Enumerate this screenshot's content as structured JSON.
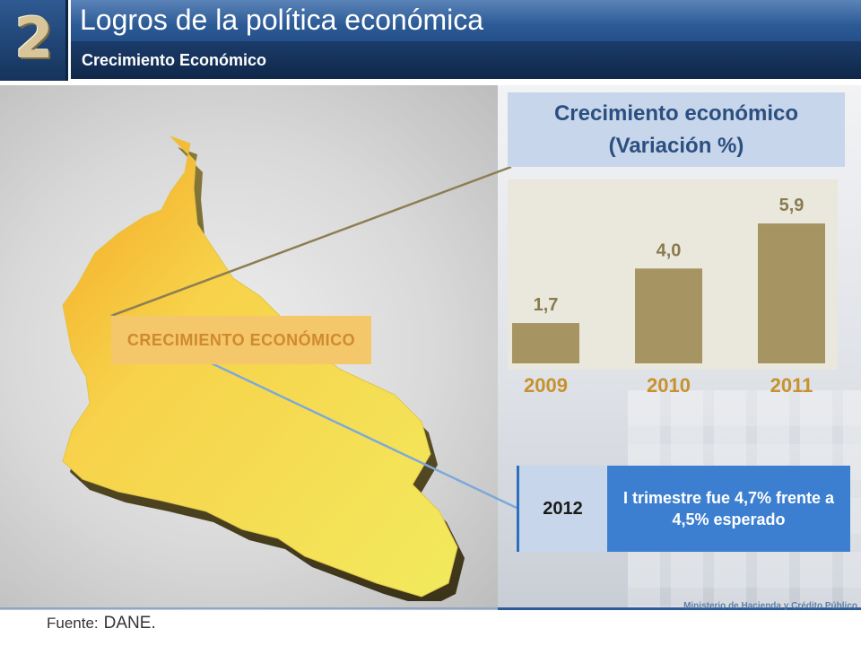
{
  "header": {
    "section_number": "2",
    "title": "Logros de la política económica",
    "subtitle": "Crecimiento Económico"
  },
  "map": {
    "label": "CRECIMIENTO ECONÓMICO",
    "fill_color": "#f2e35a",
    "highlight_color": "#f5a623"
  },
  "chart_title": {
    "line1": "Crecimiento económico",
    "line2": "(Variación %)"
  },
  "chart_data": {
    "type": "bar",
    "title": "Crecimiento económico (Variación %)",
    "categories": [
      "2009",
      "2010",
      "2011"
    ],
    "values": [
      1.7,
      4.0,
      5.9
    ],
    "value_labels": [
      "1,7",
      "4,0",
      "5,9"
    ],
    "ylim": [
      0,
      7
    ],
    "xlabel": "",
    "ylabel": "",
    "grid": false,
    "bar_color": "#a69463",
    "label_color": "#8a7a50",
    "tick_color": "#c7922d"
  },
  "info": {
    "year": "2012",
    "note": "I trimestre fue 4,7% frente a 4,5% esperado"
  },
  "footer": {
    "ministry": "Ministerio de Hacienda y Crédito Público",
    "source_label": "Fuente:",
    "source_value": "DANE."
  }
}
